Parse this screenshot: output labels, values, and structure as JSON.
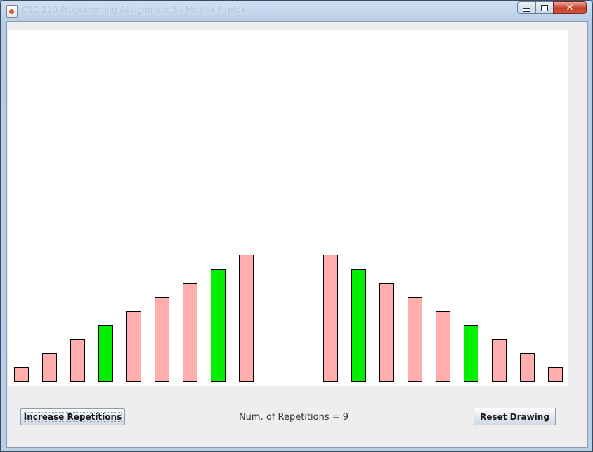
{
  "window": {
    "title": "CSC 220 Programming Assignment 5 - Mozilla Firefox",
    "controls": {
      "minimize": "minimize",
      "maximize": "maximize",
      "close": "✕"
    }
  },
  "drawing": {
    "colors": {
      "pink": "#ffadad",
      "green": "#00f000"
    },
    "bars": [
      {
        "level": 1,
        "color": "pink"
      },
      {
        "level": 2,
        "color": "pink"
      },
      {
        "level": 3,
        "color": "pink"
      },
      {
        "level": 4,
        "color": "green"
      },
      {
        "level": 5,
        "color": "pink"
      },
      {
        "level": 6,
        "color": "pink"
      },
      {
        "level": 7,
        "color": "pink"
      },
      {
        "level": 8,
        "color": "green"
      },
      {
        "level": 9,
        "color": "pink"
      },
      {
        "level": 0,
        "color": "none"
      },
      {
        "level": 0,
        "color": "none"
      },
      {
        "level": 9,
        "color": "pink"
      },
      {
        "level": 8,
        "color": "green"
      },
      {
        "level": 7,
        "color": "pink"
      },
      {
        "level": 6,
        "color": "pink"
      },
      {
        "level": 5,
        "color": "pink"
      },
      {
        "level": 4,
        "color": "green"
      },
      {
        "level": 3,
        "color": "pink"
      },
      {
        "level": 2,
        "color": "pink"
      },
      {
        "level": 1,
        "color": "pink"
      }
    ]
  },
  "controls": {
    "increase_label": "Increase Repetitions",
    "reset_label": "Reset Drawing",
    "status_label": "Num. of Repetitions = ",
    "repetitions": "9"
  }
}
